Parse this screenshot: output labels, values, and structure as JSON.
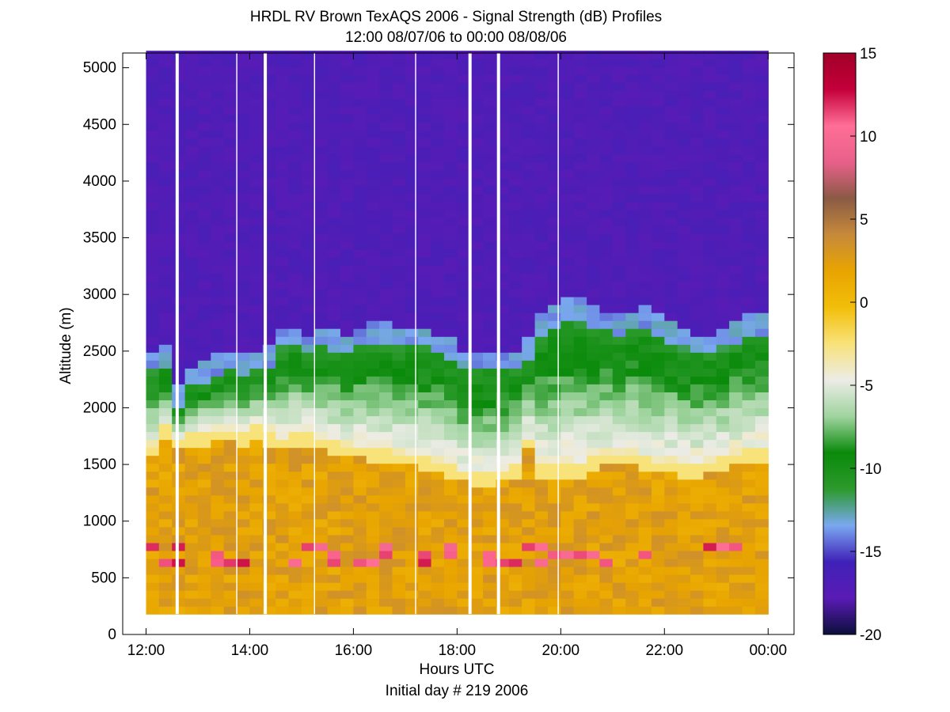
{
  "chart_data": {
    "type": "heatmap",
    "title": "HRDL RV Brown TexAQS 2006 - Signal Strength (dB) Profiles",
    "subtitle": "12:00 08/07/06 to 00:00 08/08/06",
    "xlabel": "Hours UTC",
    "xlabel_note": "Initial day # 219  2006",
    "ylabel": "Altitude (m)",
    "x_ticks": [
      "12:00",
      "14:00",
      "16:00",
      "18:00",
      "20:00",
      "22:00",
      "00:00"
    ],
    "x_tick_hours": [
      12,
      14,
      16,
      18,
      20,
      22,
      24
    ],
    "xlim": [
      11.55,
      24.5
    ],
    "y_ticks": [
      "0",
      "500",
      "1000",
      "1500",
      "2000",
      "2500",
      "3000",
      "3500",
      "4000",
      "4500",
      "5000"
    ],
    "y_tick_values": [
      0,
      500,
      1000,
      1500,
      2000,
      2500,
      3000,
      3500,
      4000,
      4500,
      5000
    ],
    "ylim": [
      0,
      5130
    ],
    "colorbar": {
      "label_ticks": [
        "15",
        "10",
        "5",
        "0",
        "-5",
        "-10",
        "-15",
        "-20"
      ],
      "tick_values": [
        15,
        10,
        5,
        0,
        -5,
        -10,
        -15,
        -20
      ],
      "range": [
        -20,
        15
      ],
      "colormap": [
        "#0b0f3a",
        "#5a1bb5",
        "#3f21b8",
        "#7aa8f0",
        "#2c9a2c",
        "#0a8a0a",
        "#9fd49f",
        "#ecece6",
        "#f8e27a",
        "#f2be0a",
        "#e8a400",
        "#c68a3a",
        "#8a5a45",
        "#e8608a",
        "#ff6e96",
        "#c4003a",
        "#a00028"
      ]
    },
    "profile_data": {
      "z_units": "dB",
      "altitude_range_m": [
        180,
        5130
      ],
      "profile_times_h": [
        12.0,
        12.25,
        12.5,
        12.75,
        13.0,
        13.25,
        13.5,
        13.75,
        14.0,
        14.25,
        14.5,
        14.75,
        15.0,
        15.25,
        15.5,
        15.75,
        16.0,
        16.25,
        16.5,
        16.75,
        17.0,
        17.25,
        17.5,
        17.75,
        18.0,
        18.25,
        18.5,
        18.75,
        19.0,
        19.25,
        19.5,
        19.75,
        20.0,
        20.25,
        20.5,
        20.75,
        21.0,
        21.25,
        21.5,
        21.75,
        22.0,
        22.25,
        22.5,
        22.75,
        23.0,
        23.25,
        23.5,
        23.75
      ],
      "boundary_layer_top_m": [
        1650,
        1800,
        1700,
        1750,
        1750,
        1780,
        1780,
        1760,
        1800,
        1750,
        1700,
        1750,
        1750,
        1720,
        1680,
        1650,
        1650,
        1620,
        1600,
        1580,
        1560,
        1530,
        1500,
        1460,
        1420,
        1400,
        1400,
        1420,
        1480,
        1700,
        1480,
        1460,
        1460,
        1480,
        1520,
        1560,
        1580,
        1560,
        1520,
        1500,
        1500,
        1480,
        1480,
        1500,
        1550,
        1580,
        1600,
        1620
      ],
      "aerosol_layer_top_m": [
        2300,
        2350,
        2000,
        2150,
        2200,
        2250,
        2300,
        2250,
        2300,
        2350,
        2500,
        2500,
        2450,
        2500,
        2480,
        2450,
        2500,
        2550,
        2550,
        2500,
        2500,
        2500,
        2450,
        2400,
        2300,
        2300,
        2300,
        2300,
        2300,
        2400,
        2600,
        2700,
        2750,
        2750,
        2700,
        2650,
        2600,
        2650,
        2700,
        2600,
        2550,
        2500,
        2450,
        2450,
        2500,
        2550,
        2600,
        2600
      ],
      "gap_times_h": [
        12.6,
        14.3,
        18.25,
        18.8
      ],
      "thin_gap_times_h": [
        13.75,
        15.25,
        17.2,
        19.95
      ]
    }
  }
}
